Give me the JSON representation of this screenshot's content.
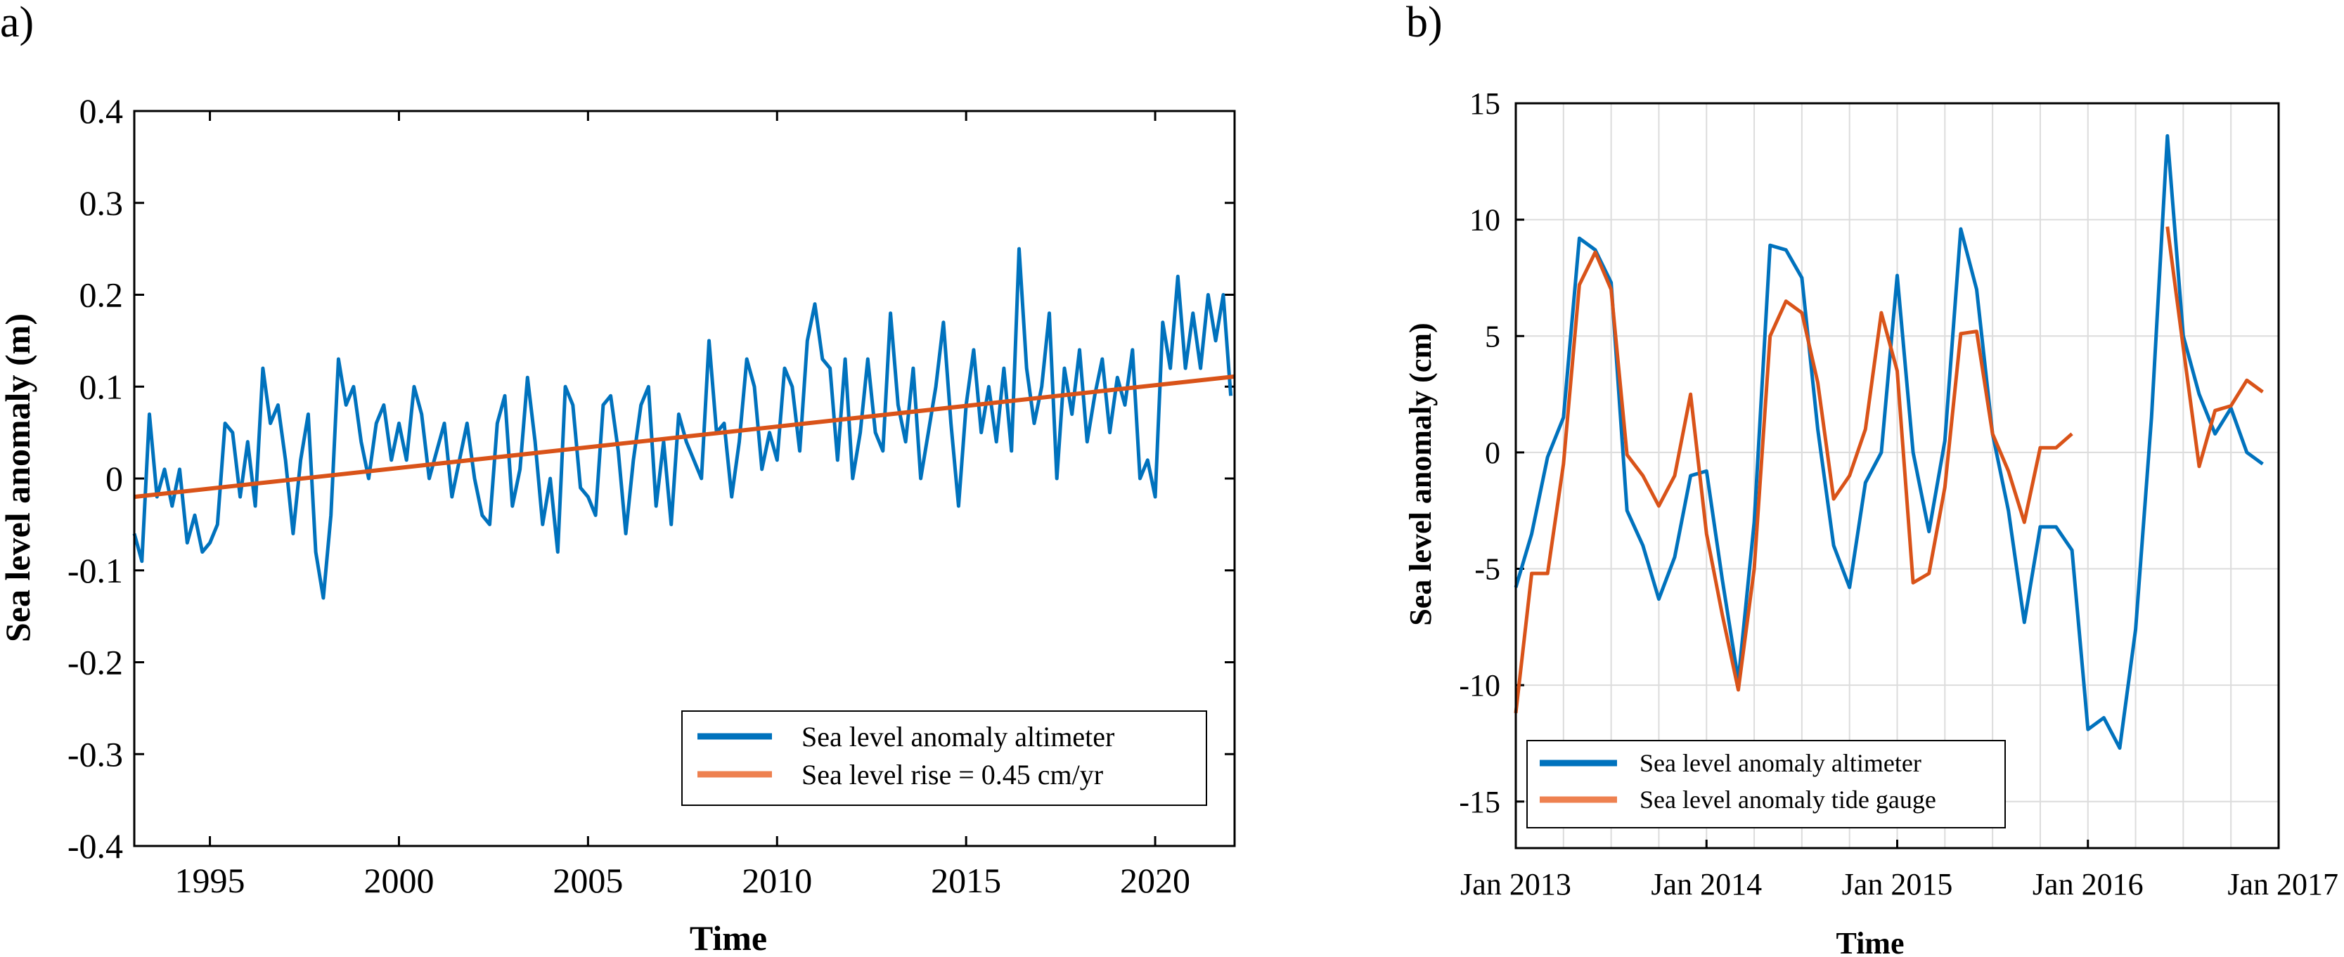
{
  "chart_data": [
    {
      "panel_label": "a)",
      "type": "line",
      "xlabel": "Time",
      "ylabel": "Sea level anomaly (m)",
      "xlim": [
        1993,
        2022.1
      ],
      "ylim": [
        -0.4,
        0.4
      ],
      "xticks": [
        1995,
        2000,
        2005,
        2010,
        2015,
        2020
      ],
      "xtick_labels": [
        "1995",
        "2000",
        "2005",
        "2010",
        "2015",
        "2020"
      ],
      "yticks": [
        -0.4,
        -0.3,
        -0.2,
        -0.1,
        0,
        0.1,
        0.2,
        0.3,
        0.4
      ],
      "ytick_labels": [
        "-0.4",
        "-0.3",
        "-0.2",
        "-0.1",
        "0",
        "0.1",
        "0.2",
        "0.3",
        "0.4"
      ],
      "grid": false,
      "legend_position": "bottom-right",
      "series": [
        {
          "name": "Sea level anomaly altimeter",
          "color": "#0072BD",
          "x": [
            1993.0,
            1993.2,
            1993.4,
            1993.6,
            1993.8,
            1994.0,
            1994.2,
            1994.4,
            1994.6,
            1994.8,
            1995.0,
            1995.2,
            1995.4,
            1995.6,
            1995.8,
            1996.0,
            1996.2,
            1996.4,
            1996.6,
            1996.8,
            1997.0,
            1997.2,
            1997.4,
            1997.6,
            1997.8,
            1998.0,
            1998.2,
            1998.4,
            1998.6,
            1998.8,
            1999.0,
            1999.2,
            1999.4,
            1999.6,
            1999.8,
            2000.0,
            2000.2,
            2000.4,
            2000.6,
            2000.8,
            2001.0,
            2001.2,
            2001.4,
            2001.6,
            2001.8,
            2002.0,
            2002.2,
            2002.4,
            2002.6,
            2002.8,
            2003.0,
            2003.2,
            2003.4,
            2003.6,
            2003.8,
            2004.0,
            2004.2,
            2004.4,
            2004.6,
            2004.8,
            2005.0,
            2005.2,
            2005.4,
            2005.6,
            2005.8,
            2006.0,
            2006.2,
            2006.4,
            2006.6,
            2006.8,
            2007.0,
            2007.2,
            2007.4,
            2007.6,
            2007.8,
            2008.0,
            2008.2,
            2008.4,
            2008.6,
            2008.8,
            2009.0,
            2009.2,
            2009.4,
            2009.6,
            2009.8,
            2010.0,
            2010.2,
            2010.4,
            2010.6,
            2010.8,
            2011.0,
            2011.2,
            2011.4,
            2011.6,
            2011.8,
            2012.0,
            2012.2,
            2012.4,
            2012.6,
            2012.8,
            2013.0,
            2013.2,
            2013.4,
            2013.6,
            2013.8,
            2014.0,
            2014.2,
            2014.4,
            2014.6,
            2014.8,
            2015.0,
            2015.2,
            2015.4,
            2015.6,
            2015.8,
            2016.0,
            2016.2,
            2016.4,
            2016.6,
            2016.8,
            2017.0,
            2017.2,
            2017.4,
            2017.6,
            2017.8,
            2018.0,
            2018.2,
            2018.4,
            2018.6,
            2018.8,
            2019.0,
            2019.2,
            2019.4,
            2019.6,
            2019.8,
            2020.0,
            2020.2,
            2020.4,
            2020.6,
            2020.8,
            2021.0,
            2021.2,
            2021.4,
            2021.6,
            2021.8,
            2022.0
          ],
          "y": [
            -0.06,
            -0.09,
            0.07,
            -0.02,
            0.01,
            -0.03,
            0.01,
            -0.07,
            -0.04,
            -0.08,
            -0.07,
            -0.05,
            0.06,
            0.05,
            -0.02,
            0.04,
            -0.03,
            0.12,
            0.06,
            0.08,
            0.02,
            -0.06,
            0.02,
            0.07,
            -0.08,
            -0.13,
            -0.04,
            0.13,
            0.08,
            0.1,
            0.04,
            0.0,
            0.06,
            0.08,
            0.02,
            0.06,
            0.02,
            0.1,
            0.07,
            0.0,
            0.03,
            0.06,
            -0.02,
            0.02,
            0.06,
            0.0,
            -0.04,
            -0.05,
            0.06,
            0.09,
            -0.03,
            0.01,
            0.11,
            0.04,
            -0.05,
            0.0,
            -0.08,
            0.1,
            0.08,
            -0.01,
            -0.02,
            -0.04,
            0.08,
            0.09,
            0.03,
            -0.06,
            0.02,
            0.08,
            0.1,
            -0.03,
            0.04,
            -0.05,
            0.07,
            0.04,
            0.02,
            0.0,
            0.15,
            0.05,
            0.06,
            -0.02,
            0.04,
            0.13,
            0.1,
            0.01,
            0.05,
            0.02,
            0.12,
            0.1,
            0.03,
            0.15,
            0.19,
            0.13,
            0.12,
            0.02,
            0.13,
            0.0,
            0.05,
            0.13,
            0.05,
            0.03,
            0.18,
            0.08,
            0.04,
            0.12,
            0.0,
            0.05,
            0.1,
            0.17,
            0.06,
            -0.03,
            0.08,
            0.14,
            0.05,
            0.1,
            0.04,
            0.12,
            0.03,
            0.25,
            0.12,
            0.06,
            0.1,
            0.18,
            0.0,
            0.12,
            0.07,
            0.14,
            0.04,
            0.09,
            0.13,
            0.05,
            0.11,
            0.08,
            0.14,
            0.0,
            0.02,
            -0.02,
            0.17,
            0.12,
            0.22,
            0.12,
            0.18,
            0.12,
            0.2,
            0.15,
            0.2,
            0.09
          ]
        },
        {
          "name": "Sea level rise = 0.45 cm/yr",
          "color": "#D95319",
          "x": [
            1993,
            2022.1
          ],
          "y": [
            -0.02,
            0.111
          ]
        }
      ]
    },
    {
      "panel_label": "b)",
      "type": "line",
      "xlabel": "Time",
      "ylabel": "Sea level anomaly (cm)",
      "xlim": [
        0,
        48
      ],
      "ylim": [
        -17,
        15
      ],
      "xticks": [
        0,
        12,
        24,
        36,
        48
      ],
      "xtick_labels": [
        "Jan 2013",
        "Jan 2014",
        "Jan 2015",
        "Jan 2016",
        "Jan 2017"
      ],
      "yticks": [
        -15,
        -10,
        -5,
        0,
        5,
        10,
        15
      ],
      "ytick_labels": [
        "-15",
        "-10",
        "-5",
        "0",
        "5",
        "10",
        "15"
      ],
      "grid": true,
      "legend_position": "bottom-left",
      "series": [
        {
          "name": "Sea level anomaly altimeter",
          "color": "#0072BD",
          "x": [
            0,
            1,
            2,
            3,
            4,
            5,
            6,
            7,
            8,
            9,
            10,
            11,
            12,
            13,
            14,
            15,
            16,
            17,
            18,
            19,
            20,
            21,
            22,
            23,
            24,
            25,
            26,
            27,
            28,
            29,
            30,
            31,
            32,
            33,
            34,
            35,
            36,
            37,
            38,
            39,
            40,
            41,
            42,
            43,
            44,
            45,
            46,
            47
          ],
          "y": [
            -5.8,
            -3.5,
            -0.2,
            1.5,
            9.2,
            8.7,
            7.3,
            -2.5,
            -4.0,
            -6.3,
            -4.5,
            -1.0,
            -0.8,
            -5.5,
            -9.8,
            -3.0,
            8.9,
            8.7,
            7.5,
            1.0,
            -4.0,
            -5.8,
            -1.3,
            0.0,
            7.6,
            0.0,
            -3.4,
            0.5,
            9.6,
            7.0,
            0.8,
            -2.5,
            -7.3,
            -3.2,
            -3.2,
            -4.2,
            -11.9,
            -11.4,
            -12.7,
            -7.6,
            1.5,
            13.6,
            5.0,
            2.5,
            0.8,
            1.9,
            0.0,
            -0.5
          ]
        },
        {
          "name": "Sea level anomaly tide gauge",
          "color": "#D95319",
          "x": [
            0,
            1,
            2,
            3,
            4,
            5,
            6,
            7,
            8,
            9,
            10,
            11,
            12,
            13,
            14,
            15,
            16,
            17,
            18,
            19,
            20,
            21,
            22,
            23,
            24,
            25,
            26,
            27,
            28,
            29,
            30,
            31,
            32,
            33,
            34,
            35,
            null,
            41,
            42,
            43,
            44,
            45,
            46,
            47
          ],
          "y": [
            -11.2,
            -5.2,
            -5.2,
            -0.5,
            7.2,
            8.6,
            7.0,
            -0.1,
            -1.0,
            -2.3,
            -1.0,
            2.5,
            -3.5,
            -7.0,
            -10.2,
            -5.0,
            5.0,
            6.5,
            6.0,
            3.0,
            -2.0,
            -1.0,
            1.0,
            6.0,
            3.5,
            -5.6,
            -5.2,
            -1.5,
            5.1,
            5.2,
            0.8,
            -0.8,
            -3.0,
            0.2,
            0.2,
            0.8,
            null,
            9.7,
            4.5,
            -0.6,
            1.8,
            2.0,
            3.1,
            2.6
          ]
        }
      ]
    }
  ]
}
